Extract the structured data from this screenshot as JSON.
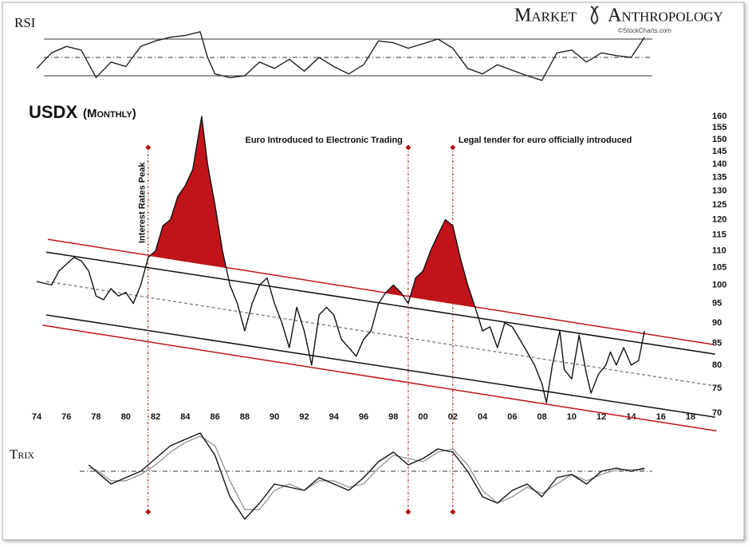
{
  "logo": {
    "left": "Market",
    "right": "Anthropology",
    "credit": "©StockCharts.com"
  },
  "chart_data": [
    {
      "type": "line",
      "title": "RSI",
      "xlim": [
        1974,
        2018
      ],
      "ylim": [
        20,
        80
      ],
      "levels": [
        30,
        50,
        70
      ],
      "color": "#222222",
      "x": [
        1974,
        1975,
        1976,
        1977,
        1978,
        1979,
        1980,
        1981,
        1982,
        1983,
        1984,
        1985,
        1985.5,
        1986,
        1987,
        1988,
        1989,
        1990,
        1991,
        1992,
        1993,
        1994,
        1995,
        1996,
        1997,
        1998,
        1999,
        2000,
        2001,
        2002,
        2003,
        2004,
        2005,
        2006,
        2007,
        2008,
        2009,
        2010,
        2011,
        2012,
        2013,
        2014,
        2014.9
      ],
      "values": [
        38,
        55,
        62,
        58,
        28,
        45,
        40,
        62,
        68,
        72,
        74,
        78,
        50,
        32,
        28,
        30,
        45,
        38,
        48,
        35,
        50,
        40,
        32,
        42,
        68,
        66,
        60,
        65,
        70,
        60,
        38,
        32,
        42,
        36,
        30,
        25,
        55,
        58,
        45,
        55,
        52,
        50,
        72
      ]
    },
    {
      "type": "line",
      "title": "USDX",
      "subtitle": "(Monthly)",
      "log_scale": true,
      "xlim": [
        1974,
        2018
      ],
      "ylim": [
        70,
        160
      ],
      "yticks": [
        70,
        75,
        80,
        85,
        90,
        95,
        100,
        105,
        110,
        115,
        120,
        125,
        130,
        135,
        140,
        145,
        150,
        155,
        160
      ],
      "xticks": [
        {
          "value": 1974,
          "label": "74"
        },
        {
          "value": 1976,
          "label": "76"
        },
        {
          "value": 1978,
          "label": "78"
        },
        {
          "value": 1980,
          "label": "80"
        },
        {
          "value": 1982,
          "label": "82"
        },
        {
          "value": 1984,
          "label": "84"
        },
        {
          "value": 1986,
          "label": "86"
        },
        {
          "value": 1988,
          "label": "88"
        },
        {
          "value": 1990,
          "label": "90"
        },
        {
          "value": 1992,
          "label": "92"
        },
        {
          "value": 1994,
          "label": "94"
        },
        {
          "value": 1996,
          "label": "96"
        },
        {
          "value": 1998,
          "label": "98"
        },
        {
          "value": 2000,
          "label": "00"
        },
        {
          "value": 2002,
          "label": "02"
        },
        {
          "value": 2004,
          "label": "04"
        },
        {
          "value": 2006,
          "label": "06"
        },
        {
          "value": 2008,
          "label": "08"
        },
        {
          "value": 2010,
          "label": "10"
        },
        {
          "value": 2012,
          "label": "12"
        },
        {
          "value": 2014,
          "label": "14"
        },
        {
          "value": 2016,
          "label": "16"
        },
        {
          "value": 2018,
          "label": "18"
        }
      ],
      "color": "#111111",
      "fill_color": "#c0141a",
      "x": [
        1974,
        1975,
        1975.5,
        1976.5,
        1977,
        1977.5,
        1978,
        1978.5,
        1979,
        1979.5,
        1980,
        1980.5,
        1981,
        1981.5,
        1982,
        1982.5,
        1983,
        1983.5,
        1984,
        1984.5,
        1985.1,
        1985.5,
        1986,
        1986.5,
        1987,
        1987.5,
        1988,
        1988.5,
        1989,
        1989.5,
        1990,
        1990.5,
        1991,
        1991.5,
        1992,
        1992.5,
        1993,
        1993.5,
        1994,
        1994.5,
        1995,
        1995.5,
        1996,
        1996.5,
        1997,
        1997.5,
        1998,
        1998.5,
        1999,
        1999.5,
        2000,
        2000.5,
        2001,
        2001.5,
        2002,
        2002.5,
        2003,
        2003.5,
        2004,
        2004.5,
        2005,
        2005.5,
        2006,
        2006.5,
        2007,
        2007.5,
        2008,
        2008.3,
        2008.7,
        2009.2,
        2009.5,
        2010,
        2010.5,
        2011,
        2011.3,
        2011.8,
        2012.3,
        2012.6,
        2013,
        2013.5,
        2014,
        2014.5,
        2014.9
      ],
      "values": [
        101,
        100,
        104,
        108,
        107,
        104,
        97,
        96,
        99,
        97,
        98,
        95,
        100,
        108,
        110,
        118,
        120,
        128,
        132,
        138,
        160,
        140,
        125,
        110,
        100,
        95,
        88,
        95,
        100,
        102,
        95,
        90,
        84,
        94,
        88,
        80,
        92,
        94,
        92,
        86,
        84,
        82,
        86,
        88,
        95,
        98,
        100,
        98,
        95,
        102,
        104,
        110,
        115,
        120,
        118,
        108,
        100,
        94,
        88,
        89,
        84,
        90,
        89,
        86,
        83,
        80,
        76,
        72,
        80,
        88,
        79,
        77,
        87,
        78,
        74,
        78,
        80,
        83,
        80,
        84,
        80,
        81,
        88
      ],
      "channels": [
        {
          "x": [
            1974.75,
            2019.55
          ],
          "values": [
            113.6,
            84.7
          ],
          "color": "#c0141a"
        },
        {
          "x": [
            1974.65,
            2019.65
          ],
          "values": [
            109.6,
            82.5
          ],
          "color": "#111111"
        },
        {
          "x": [
            1974.65,
            2019.65
          ],
          "values": [
            101.0,
            75.5
          ],
          "color": "#888888",
          "dashed": true
        },
        {
          "x": [
            1974.65,
            2019.65
          ],
          "values": [
            92.0,
            69.2
          ],
          "color": "#111111"
        },
        {
          "x": [
            1974.4,
            2019.75
          ],
          "values": [
            89.4,
            66.6
          ],
          "color": "#c0141a"
        }
      ],
      "annotations": [
        {
          "x": 1981.5,
          "text": "Interest Rates Peak"
        },
        {
          "x": 1999,
          "text": "Euro Introduced to Electronic Trading"
        },
        {
          "x": 2002,
          "text": "Legal tender for euro officially introduced"
        }
      ]
    },
    {
      "type": "line",
      "title": "Trix",
      "xlim": [
        1974,
        2018
      ],
      "ylim": [
        -1.6,
        1.6
      ],
      "levels": [
        0
      ],
      "x": [
        1977.5,
        1978,
        1979,
        1980,
        1981,
        1982,
        1983,
        1984,
        1985,
        1986,
        1987,
        1988,
        1989,
        1990,
        1991,
        1992,
        1993,
        1994,
        1995,
        1996,
        1997,
        1998,
        1999,
        2000,
        2001,
        2002,
        2003,
        2004,
        2005,
        2006,
        2007,
        2008,
        2009,
        2010,
        2011,
        2012,
        2013,
        2014,
        2014.9
      ],
      "series": [
        {
          "color": "#999999",
          "values": [
            0.1,
            0.05,
            -0.3,
            -0.3,
            -0.1,
            0.2,
            0.6,
            0.9,
            1.1,
            0.8,
            -0.3,
            -1.2,
            -1.2,
            -0.6,
            -0.4,
            -0.6,
            -0.3,
            -0.3,
            -0.5,
            -0.4,
            0.1,
            0.5,
            0.4,
            0.3,
            0.6,
            0.7,
            0.2,
            -0.6,
            -1,
            -0.8,
            -0.5,
            -0.7,
            -0.4,
            -0.1,
            -0.3,
            -0.1,
            0.05,
            0.05,
            0.05
          ]
        },
        {
          "color": "#111111",
          "values": [
            0.2,
            0,
            -0.4,
            -0.2,
            0,
            0.4,
            0.8,
            1,
            1.2,
            0.5,
            -0.8,
            -1.5,
            -1,
            -0.4,
            -0.5,
            -0.6,
            -0.2,
            -0.4,
            -0.6,
            -0.2,
            0.3,
            0.6,
            0.2,
            0.4,
            0.7,
            0.6,
            0,
            -0.8,
            -1,
            -0.6,
            -0.4,
            -0.8,
            -0.2,
            -0.1,
            -0.4,
            0,
            0.1,
            0,
            0.1
          ]
        }
      ]
    }
  ]
}
